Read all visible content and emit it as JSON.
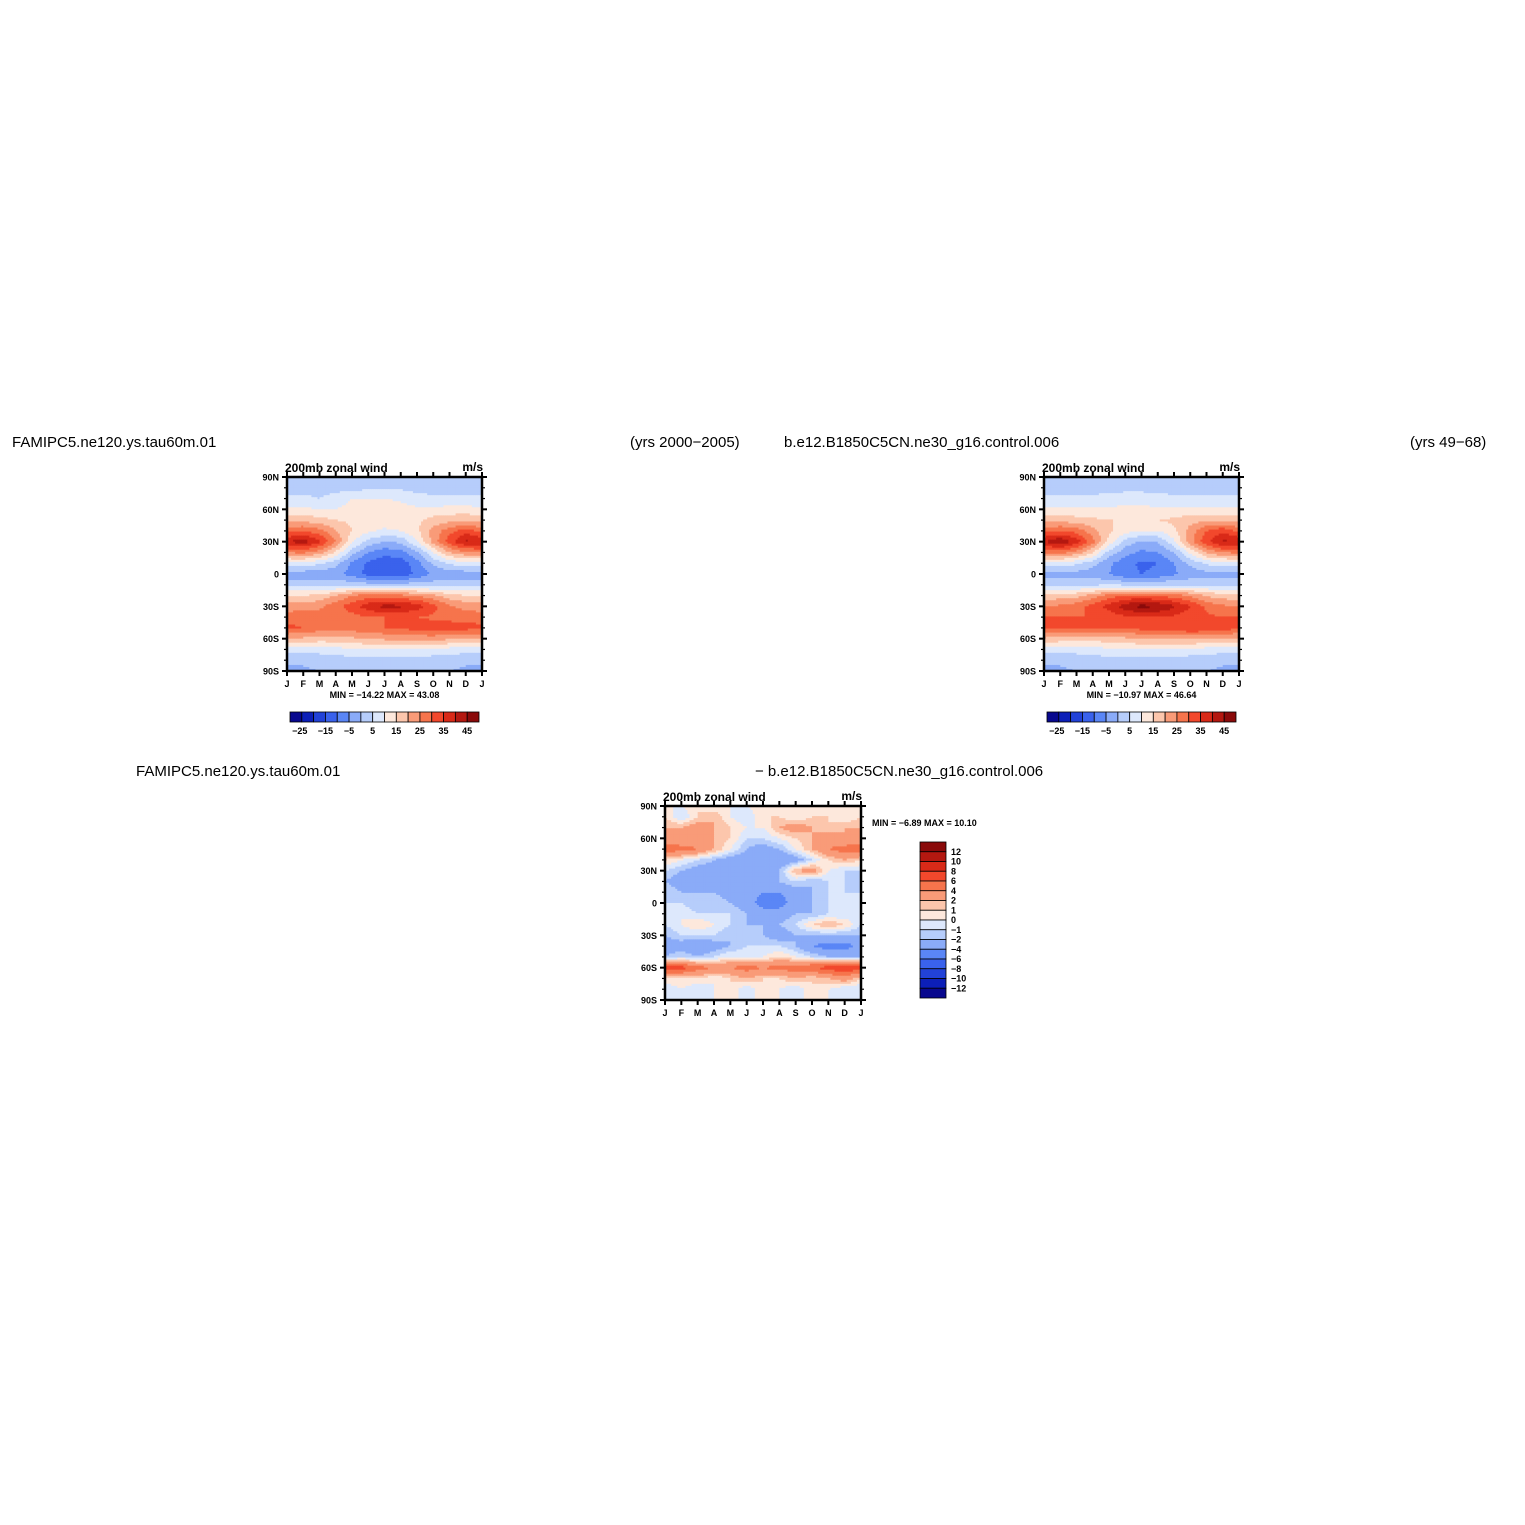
{
  "headers": {
    "left_case": "FAMIPC5.ne120.ys.tau60m.01",
    "left_years": "(yrs 2000−2005)",
    "right_case": "b.e12.B1850C5CN.ne30_g16.control.006",
    "right_years": "(yrs 49−68)",
    "diff_left": "FAMIPC5.ne120.ys.tau60m.01",
    "diff_right": "− b.e12.B1850C5CN.ne30_g16.control.006"
  },
  "colors": {
    "abs_levels": [
      "#08088e",
      "#0c1fb8",
      "#2242d8",
      "#3a62ec",
      "#5a86f6",
      "#8aabf8",
      "#b6cdfb",
      "#dde8fc",
      "#fde8dc",
      "#fcc6ac",
      "#f99b78",
      "#f6744c",
      "#f2482c",
      "#d92a18",
      "#b41810",
      "#8a0a0a"
    ],
    "diff_levels": [
      "#08088e",
      "#0c1fb8",
      "#2242d8",
      "#3a62ec",
      "#5a86f6",
      "#8aabf8",
      "#b6cdfb",
      "#dde8fc",
      "#fde8dc",
      "#fcc6ac",
      "#f99b78",
      "#f6744c",
      "#f2482c",
      "#d92a18",
      "#b41810",
      "#8a0a0a"
    ]
  },
  "chart_data": [
    {
      "type": "heatmap",
      "title": "200mb zonal wind",
      "units": "m/s",
      "x_ticks": [
        "J",
        "F",
        "M",
        "A",
        "M",
        "J",
        "J",
        "A",
        "S",
        "O",
        "N",
        "D",
        "J"
      ],
      "y_ticks": [
        "90N",
        "60N",
        "30N",
        "0",
        "30S",
        "60S",
        "90S"
      ],
      "stats": "MIN = −14.22 MAX =   43.08",
      "colorbar_labels": [
        "−25",
        "−15",
        "−5",
        "5",
        "15",
        "25",
        "35",
        "45"
      ],
      "lat": [
        90,
        80,
        70,
        60,
        50,
        40,
        30,
        20,
        10,
        0,
        -10,
        -20,
        -30,
        -40,
        -50,
        -60,
        -70,
        -80,
        -90
      ],
      "months": [
        "J",
        "F",
        "M",
        "A",
        "M",
        "J",
        "J",
        "A",
        "S",
        "O",
        "N",
        "D",
        "J"
      ],
      "values": [
        [
          0,
          0,
          0,
          0,
          0,
          0,
          0,
          0,
          0,
          0,
          0,
          0,
          0
        ],
        [
          3,
          3,
          3,
          3,
          3,
          4,
          4,
          4,
          3,
          3,
          3,
          3,
          3
        ],
        [
          6,
          6,
          5,
          7,
          10,
          10,
          10,
          9,
          7,
          6,
          6,
          6,
          6
        ],
        [
          11,
          11,
          10,
          10,
          12,
          12,
          13,
          12,
          11,
          11,
          12,
          12,
          11
        ],
        [
          18,
          18,
          17,
          15,
          14,
          13,
          13,
          13,
          14,
          17,
          18,
          19,
          18
        ],
        [
          28,
          30,
          27,
          20,
          15,
          11,
          9,
          10,
          14,
          22,
          28,
          33,
          28
        ],
        [
          40,
          43,
          36,
          25,
          11,
          3,
          0,
          1,
          10,
          22,
          33,
          41,
          40
        ],
        [
          25,
          26,
          22,
          14,
          2,
          -5,
          -8,
          -7,
          -1,
          10,
          20,
          24,
          25
        ],
        [
          8,
          8,
          6,
          2,
          -6,
          -11,
          -14,
          -13,
          -7,
          1,
          6,
          8,
          8
        ],
        [
          -3,
          -3,
          -3,
          -4,
          -7,
          -12,
          -14,
          -13,
          -9,
          -4,
          -3,
          -3,
          -3
        ],
        [
          3,
          3,
          3,
          3,
          3,
          2,
          2,
          2,
          2,
          2,
          3,
          3,
          3
        ],
        [
          15,
          15,
          16,
          20,
          25,
          27,
          27,
          26,
          24,
          21,
          17,
          15,
          15
        ],
        [
          22,
          23,
          24,
          28,
          33,
          38,
          42,
          41,
          38,
          32,
          26,
          23,
          22
        ],
        [
          28,
          28,
          27,
          27,
          28,
          30,
          30,
          30,
          30,
          29,
          28,
          28,
          28
        ],
        [
          31,
          30,
          28,
          27,
          28,
          28,
          30,
          31,
          32,
          33,
          33,
          32,
          31
        ],
        [
          20,
          19,
          18,
          18,
          19,
          20,
          21,
          22,
          22,
          22,
          21,
          20,
          20
        ],
        [
          7,
          7,
          7,
          8,
          9,
          10,
          10,
          10,
          10,
          9,
          8,
          7,
          7
        ],
        [
          1,
          1,
          2,
          2,
          3,
          3,
          3,
          3,
          3,
          2,
          2,
          1,
          1
        ],
        [
          -1,
          -1,
          0,
          0,
          0,
          0,
          0,
          0,
          0,
          0,
          0,
          -1,
          -1
        ]
      ]
    },
    {
      "type": "heatmap",
      "title": "200mb zonal wind",
      "units": "m/s",
      "x_ticks": [
        "J",
        "F",
        "M",
        "A",
        "M",
        "J",
        "J",
        "A",
        "S",
        "O",
        "N",
        "D",
        "J"
      ],
      "y_ticks": [
        "90N",
        "60N",
        "30N",
        "0",
        "30S",
        "60S",
        "90S"
      ],
      "stats": "MIN = −10.97 MAX =   46.64",
      "colorbar_labels": [
        "−25",
        "−15",
        "−5",
        "5",
        "15",
        "25",
        "35",
        "45"
      ],
      "lat": [
        90,
        80,
        70,
        60,
        50,
        40,
        30,
        20,
        10,
        0,
        -10,
        -20,
        -30,
        -40,
        -50,
        -60,
        -70,
        -80,
        -90
      ],
      "months": [
        "J",
        "F",
        "M",
        "A",
        "M",
        "J",
        "J",
        "A",
        "S",
        "O",
        "N",
        "D",
        "J"
      ],
      "values": [
        [
          0,
          0,
          0,
          0,
          0,
          0,
          0,
          0,
          0,
          0,
          0,
          0,
          0
        ],
        [
          3,
          3,
          3,
          3,
          3,
          3,
          3,
          3,
          3,
          3,
          3,
          3,
          3
        ],
        [
          6,
          6,
          6,
          6,
          7,
          8,
          8,
          7,
          6,
          6,
          6,
          6,
          6
        ],
        [
          11,
          11,
          11,
          11,
          11,
          11,
          11,
          11,
          11,
          11,
          11,
          11,
          11
        ],
        [
          18,
          18,
          17,
          16,
          15,
          15,
          15,
          15,
          16,
          18,
          19,
          19,
          18
        ],
        [
          28,
          30,
          28,
          22,
          16,
          12,
          10,
          10,
          14,
          22,
          30,
          34,
          28
        ],
        [
          40,
          45,
          38,
          27,
          13,
          3,
          -1,
          0,
          9,
          23,
          34,
          41,
          40
        ],
        [
          26,
          27,
          23,
          15,
          3,
          -3,
          -6,
          -5,
          0,
          11,
          21,
          25,
          26
        ],
        [
          8,
          8,
          6,
          2,
          -4,
          -8,
          -11,
          -10,
          -5,
          1,
          6,
          8,
          8
        ],
        [
          -2,
          -2,
          -2,
          -3,
          -5,
          -9,
          -10,
          -9,
          -6,
          -3,
          -2,
          -2,
          -2
        ],
        [
          4,
          4,
          4,
          4,
          5,
          4,
          4,
          4,
          4,
          4,
          4,
          4,
          4
        ],
        [
          17,
          17,
          18,
          22,
          27,
          30,
          30,
          29,
          27,
          24,
          19,
          17,
          17
        ],
        [
          25,
          26,
          28,
          32,
          37,
          43,
          47,
          45,
          41,
          35,
          29,
          26,
          25
        ],
        [
          30,
          30,
          30,
          30,
          32,
          34,
          35,
          35,
          34,
          32,
          31,
          30,
          30
        ],
        [
          31,
          31,
          30,
          30,
          30,
          30,
          32,
          33,
          34,
          35,
          35,
          33,
          31
        ],
        [
          19,
          18,
          17,
          17,
          18,
          19,
          20,
          21,
          21,
          21,
          20,
          19,
          19
        ],
        [
          7,
          7,
          7,
          8,
          9,
          9,
          10,
          10,
          10,
          9,
          8,
          7,
          7
        ],
        [
          1,
          1,
          2,
          2,
          3,
          3,
          3,
          3,
          3,
          2,
          2,
          1,
          1
        ],
        [
          -1,
          -1,
          0,
          0,
          0,
          0,
          0,
          0,
          0,
          0,
          0,
          -1,
          -1
        ]
      ]
    },
    {
      "type": "heatmap",
      "title": "200mb zonal wind",
      "units": "m/s",
      "x_ticks": [
        "J",
        "F",
        "M",
        "A",
        "M",
        "J",
        "J",
        "A",
        "S",
        "O",
        "N",
        "D",
        "J"
      ],
      "y_ticks": [
        "90N",
        "60N",
        "30N",
        "0",
        "30S",
        "60S",
        "90S"
      ],
      "stats": "MIN =  −6.89 MAX =   10.10",
      "colorbar_labels": [
        "12",
        "10",
        "8",
        "6",
        "4",
        "2",
        "1",
        "0",
        "−1",
        "−2",
        "−4",
        "−6",
        "−8",
        "−10",
        "−12"
      ],
      "lat": [
        90,
        80,
        70,
        60,
        50,
        40,
        30,
        20,
        10,
        0,
        -10,
        -20,
        -30,
        -40,
        -50,
        -60,
        -70,
        -80,
        -90
      ],
      "months": [
        "J",
        "F",
        "M",
        "A",
        "M",
        "J",
        "J",
        "A",
        "S",
        "O",
        "N",
        "D",
        "J"
      ],
      "values": [
        [
          0,
          0,
          1,
          0,
          0,
          0,
          1,
          0,
          0,
          0,
          0,
          0,
          0
        ],
        [
          1,
          -1,
          1,
          2,
          0,
          -1,
          1,
          1,
          0,
          1,
          1,
          0,
          1
        ],
        [
          2,
          2,
          3,
          2,
          1,
          0,
          0,
          2,
          3,
          2,
          1,
          2,
          2
        ],
        [
          3,
          2,
          3,
          2,
          1,
          -1,
          -1,
          0,
          1,
          2,
          3,
          2,
          3
        ],
        [
          5,
          5,
          4,
          2,
          0,
          -2,
          -3,
          -2,
          0,
          2,
          4,
          5,
          5
        ],
        [
          1,
          0,
          -1,
          -2,
          -3,
          -3,
          -4,
          -4,
          -3,
          -1,
          1,
          2,
          1
        ],
        [
          -1,
          -2,
          -3,
          -3,
          -3,
          -4,
          -3,
          -2,
          2,
          3,
          0,
          -1,
          -1
        ],
        [
          -2,
          -3,
          -3,
          -3,
          -4,
          -4,
          -3,
          -2,
          -1,
          -2,
          -1,
          -1,
          -2
        ],
        [
          -1,
          -2,
          -2,
          -2,
          -3,
          -3,
          -4,
          -4,
          -3,
          -2,
          -1,
          -1,
          -1
        ],
        [
          -1,
          -1,
          -2,
          -1,
          -2,
          -3,
          -5,
          -5,
          -3,
          -2,
          -1,
          -1,
          -1
        ],
        [
          0,
          0,
          -1,
          -1,
          -1,
          -2,
          -3,
          -3,
          -2,
          -2,
          -1,
          -1,
          0
        ],
        [
          -1,
          0,
          1,
          0,
          -1,
          -2,
          -2,
          -2,
          -1,
          1,
          2,
          1,
          -1
        ],
        [
          -2,
          -1,
          -1,
          -1,
          -2,
          -2,
          -2,
          -3,
          -2,
          -2,
          -2,
          -2,
          -2
        ],
        [
          -3,
          -3,
          -4,
          -3,
          -2,
          -1,
          -1,
          -1,
          -2,
          -4,
          -5,
          -5,
          -3
        ],
        [
          -2,
          -1,
          -2,
          -1,
          0,
          0,
          0,
          1,
          0,
          -1,
          -2,
          -2,
          -2
        ],
        [
          7,
          7,
          5,
          4,
          4,
          5,
          4,
          5,
          5,
          6,
          7,
          8,
          7
        ],
        [
          1,
          1,
          1,
          0,
          1,
          2,
          1,
          1,
          2,
          1,
          2,
          3,
          1
        ],
        [
          -1,
          0,
          -1,
          0,
          1,
          -1,
          1,
          0,
          -1,
          1,
          0,
          -1,
          -1
        ],
        [
          0,
          0,
          0,
          0,
          0,
          0,
          0,
          0,
          0,
          0,
          0,
          0,
          0
        ]
      ]
    }
  ]
}
